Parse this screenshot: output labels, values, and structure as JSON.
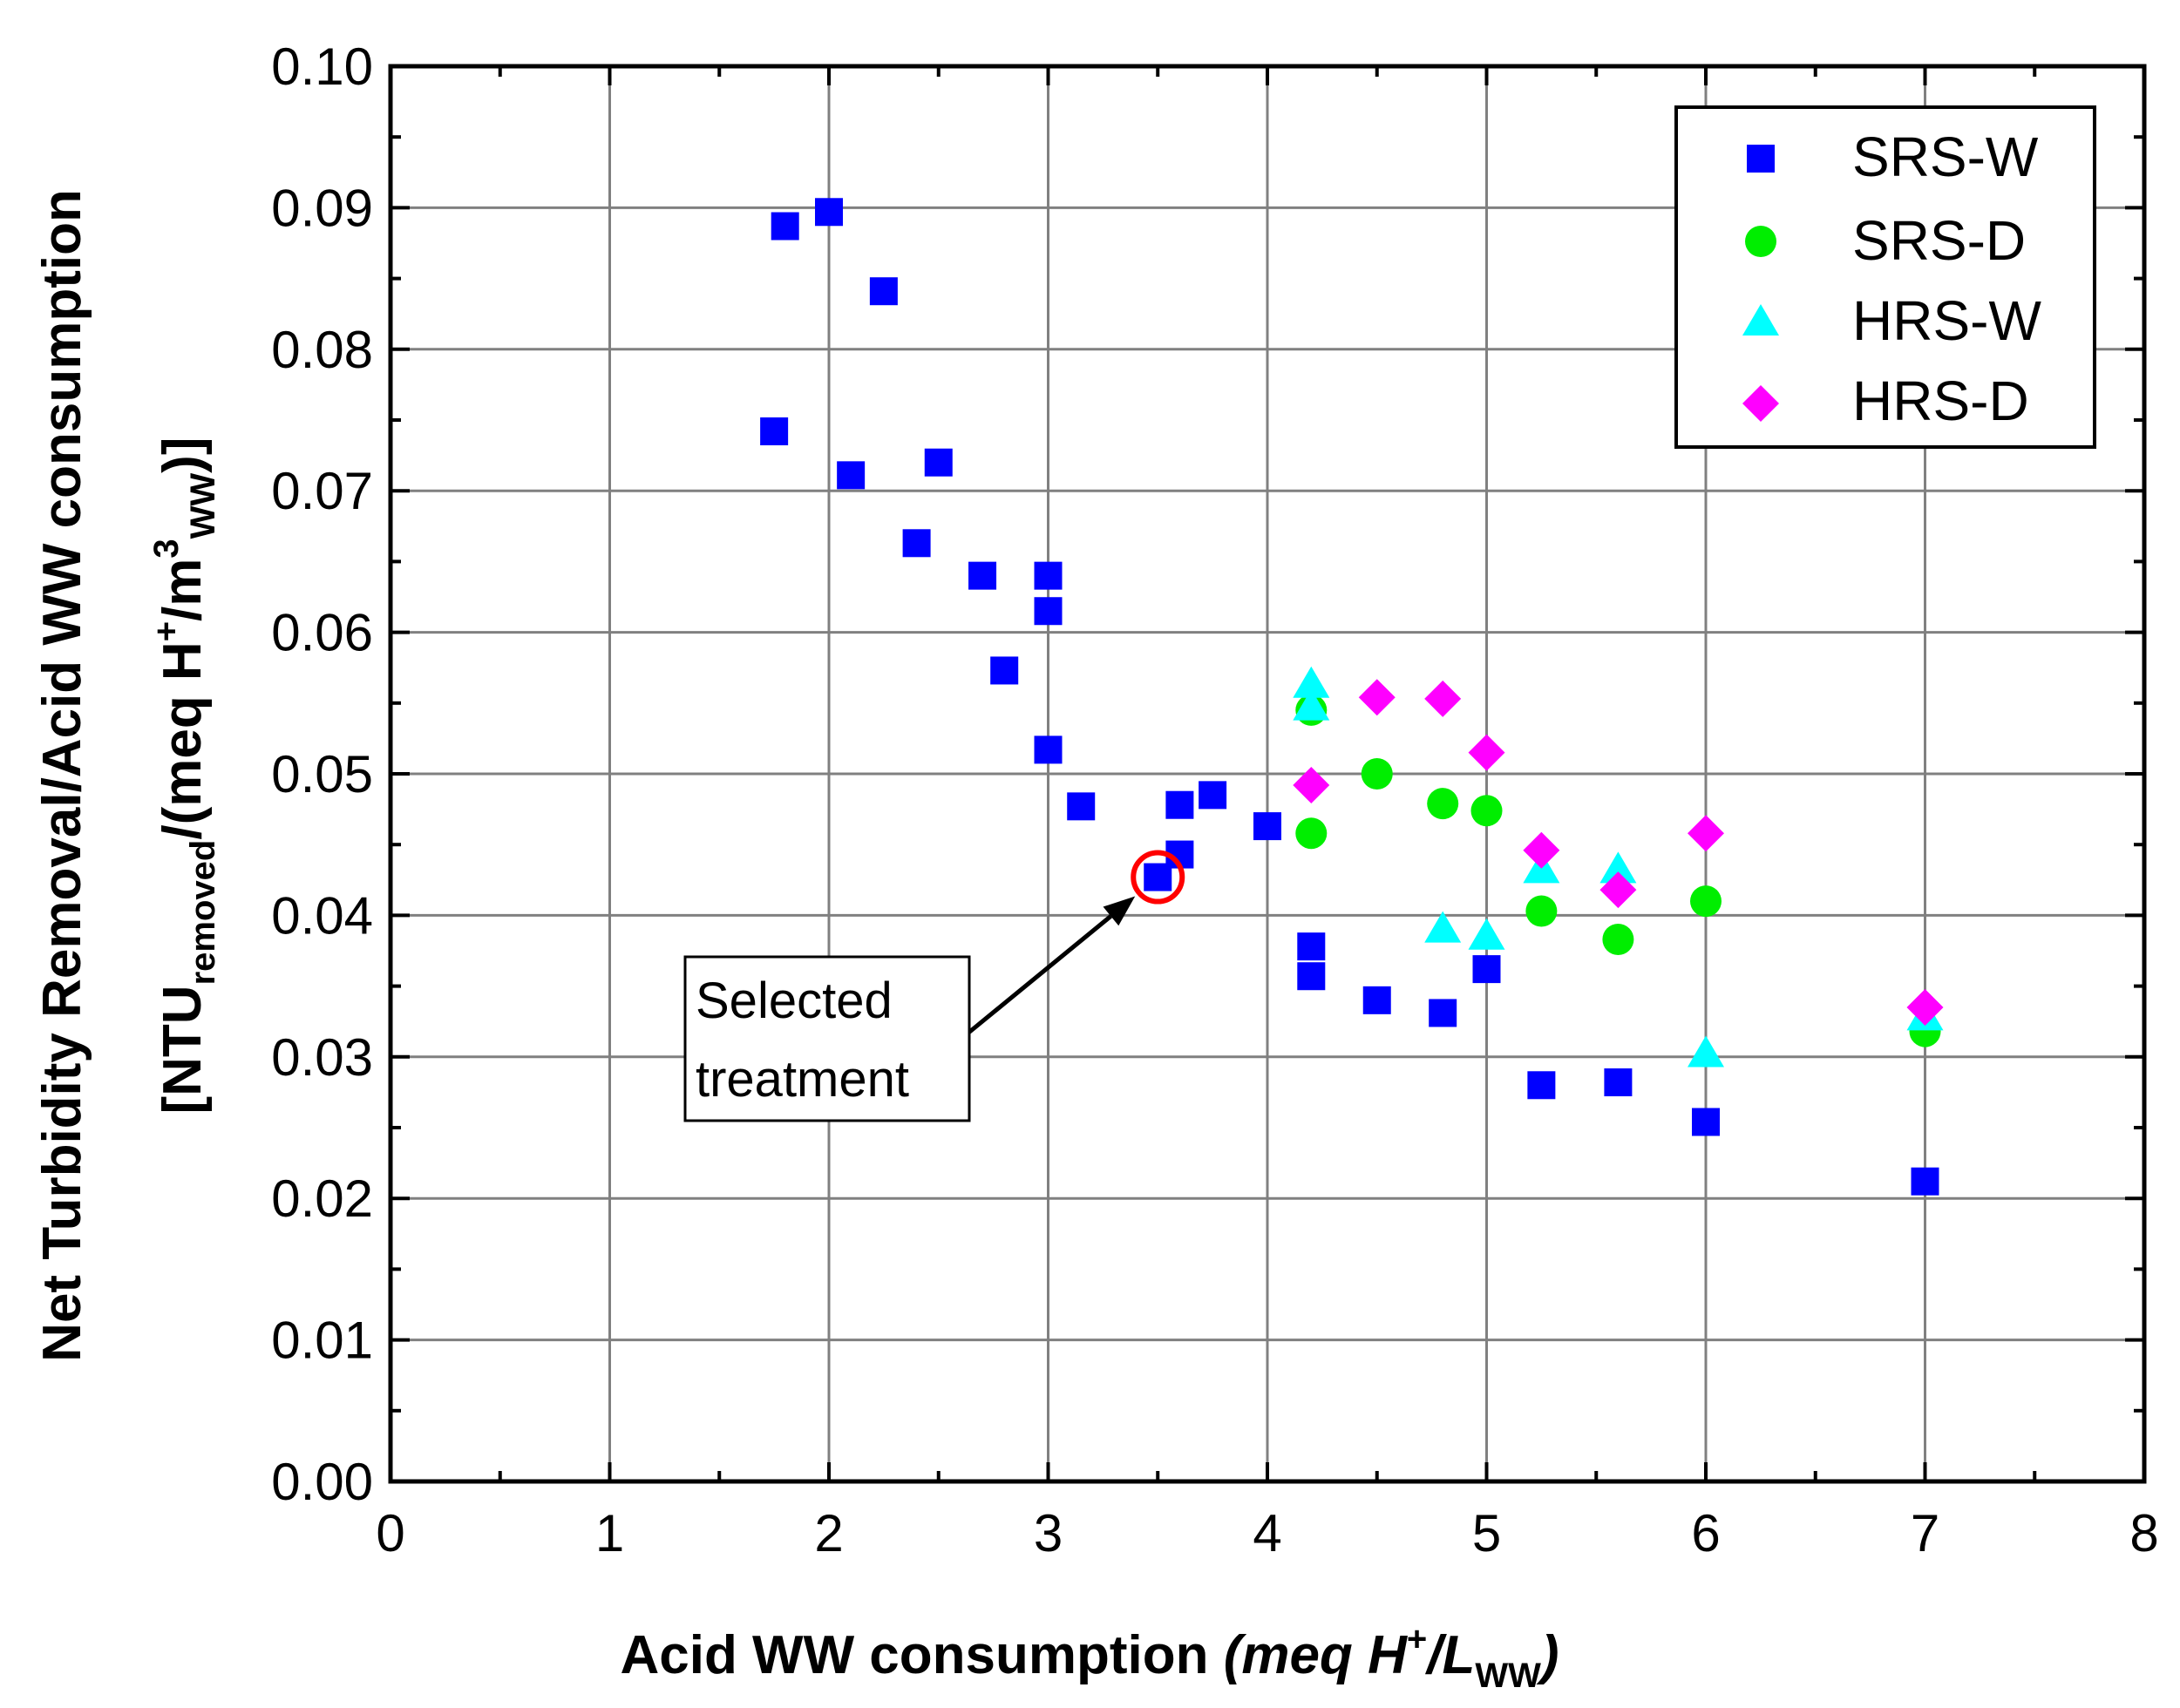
{
  "chart_data": {
    "type": "scatter",
    "title": "",
    "xlabel": {
      "main": "Acid WW consumption ",
      "paren_open": "(meq H",
      "sup": "+",
      "slash": "/L",
      "sub": "WW",
      "paren_close": ")"
    },
    "ylabel": {
      "line1": "Net Turbidity Removal/Acid WW consumption",
      "line2": {
        "open": "[NTU",
        "sub1": "removed",
        "mid": "/(meq H",
        "sup1": "+",
        "mid2": "/m",
        "sup2": "3",
        "sub2": "WW",
        "close": ")]"
      }
    },
    "xlim": [
      0,
      8
    ],
    "ylim": [
      0,
      0.1
    ],
    "xticks": [
      "0",
      "1",
      "2",
      "3",
      "4",
      "5",
      "6",
      "7",
      "8"
    ],
    "yticks": [
      "0.00",
      "0.01",
      "0.02",
      "0.03",
      "0.04",
      "0.05",
      "0.06",
      "0.07",
      "0.08",
      "0.09",
      "0.10"
    ],
    "grid": true,
    "legend_position": "top-right",
    "series": [
      {
        "name": "SRS-W",
        "marker": "square",
        "color": "#0000FF",
        "points": [
          [
            1.75,
            0.0742
          ],
          [
            1.8,
            0.0887
          ],
          [
            2.0,
            0.0897
          ],
          [
            2.1,
            0.0711
          ],
          [
            2.25,
            0.0841
          ],
          [
            2.4,
            0.0663
          ],
          [
            2.5,
            0.072
          ],
          [
            2.7,
            0.064
          ],
          [
            2.8,
            0.0573
          ],
          [
            3.0,
            0.064
          ],
          [
            3.0,
            0.0615
          ],
          [
            3.0,
            0.0517
          ],
          [
            3.15,
            0.0477
          ],
          [
            3.5,
            0.0427
          ],
          [
            3.6,
            0.0443
          ],
          [
            3.6,
            0.0478
          ],
          [
            3.75,
            0.0485
          ],
          [
            4.0,
            0.0463
          ],
          [
            4.2,
            0.0378
          ],
          [
            4.2,
            0.0357
          ],
          [
            4.5,
            0.034
          ],
          [
            4.8,
            0.0331
          ],
          [
            5.0,
            0.0362
          ],
          [
            5.25,
            0.028
          ],
          [
            5.6,
            0.0282
          ],
          [
            6.0,
            0.0254
          ],
          [
            7.0,
            0.0212
          ]
        ]
      },
      {
        "name": "SRS-D",
        "marker": "circle",
        "color": "#00EE00",
        "points": [
          [
            4.2,
            0.0545
          ],
          [
            4.2,
            0.0458
          ],
          [
            4.5,
            0.05
          ],
          [
            4.8,
            0.0479
          ],
          [
            5.0,
            0.0474
          ],
          [
            5.25,
            0.0403
          ],
          [
            5.6,
            0.0383
          ],
          [
            6.0,
            0.041
          ],
          [
            7.0,
            0.0318
          ]
        ]
      },
      {
        "name": "HRS-W",
        "marker": "triangle",
        "color": "#00FFFF",
        "points": [
          [
            4.2,
            0.0563
          ],
          [
            4.2,
            0.0547
          ],
          [
            4.8,
            0.039
          ],
          [
            5.0,
            0.0385
          ],
          [
            5.25,
            0.0432
          ],
          [
            5.6,
            0.0432
          ],
          [
            6.0,
            0.0302
          ],
          [
            7.0,
            0.0328
          ]
        ]
      },
      {
        "name": "HRS-D",
        "marker": "diamond",
        "color": "#FF00FF",
        "points": [
          [
            4.2,
            0.0492
          ],
          [
            4.5,
            0.0554
          ],
          [
            4.8,
            0.0553
          ],
          [
            5.0,
            0.0515
          ],
          [
            5.25,
            0.0446
          ],
          [
            5.6,
            0.0418
          ],
          [
            6.0,
            0.0458
          ],
          [
            7.0,
            0.0335
          ]
        ]
      }
    ],
    "annotation": {
      "line1": "Selected",
      "line2": "treatment",
      "target": [
        3.5,
        0.0427
      ],
      "highlight_color": "#FF0000"
    }
  }
}
